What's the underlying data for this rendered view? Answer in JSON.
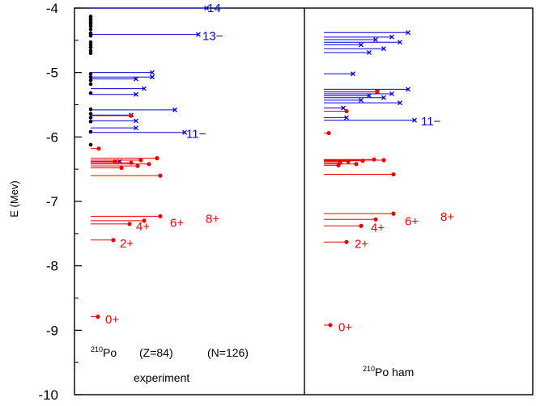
{
  "chart_data": {
    "type": "scatter",
    "ylabel": "E (Mev)",
    "ylim": [
      -10,
      -4
    ],
    "yticks": [
      -4,
      -5,
      -6,
      -7,
      -8,
      -9,
      -10
    ],
    "grid": false,
    "colors": {
      "red": "#ee0000",
      "blue": "#0000dd",
      "black": "#000000"
    },
    "panels": [
      {
        "name": "experiment",
        "caption_line1": {
          "mass": "210",
          "symbol": "Po",
          "z": "(Z=84)",
          "n": "(N=126)"
        },
        "caption_line2": "experiment",
        "black_dots": [
          -4.13,
          -4.16,
          -4.19,
          -4.22,
          -4.25,
          -4.28,
          -4.33,
          -4.39,
          -4.43,
          -4.53,
          -4.57,
          -4.61,
          -4.66,
          -4.7,
          -5.02,
          -5.07,
          -5.12,
          -5.18,
          -5.32,
          -5.57,
          -5.64,
          -5.7,
          -5.76,
          -5.92,
          -6.12
        ],
        "red_levels": [
          {
            "e": -6.18,
            "len": 10
          },
          {
            "e": -6.33,
            "len": 82
          },
          {
            "e": -6.36,
            "len": 62
          },
          {
            "e": -6.38,
            "len": 30
          },
          {
            "e": -6.4,
            "len": 50
          },
          {
            "e": -6.42,
            "len": 72
          },
          {
            "e": -6.45,
            "len": 58
          },
          {
            "e": -6.48,
            "len": 38
          },
          {
            "e": -6.6,
            "len": 86
          },
          {
            "e": -5.67,
            "len": 50
          },
          {
            "e": -7.23,
            "len": 86
          },
          {
            "e": -7.3,
            "len": 66
          },
          {
            "e": -7.35,
            "len": 48
          },
          {
            "e": -7.6,
            "len": 28
          },
          {
            "e": -8.79,
            "len": 9
          }
        ],
        "blue_levels": [
          {
            "e": -4.0,
            "len": 143
          },
          {
            "e": -4.41,
            "len": 133
          },
          {
            "e": -5.0,
            "len": 76
          },
          {
            "e": -5.07,
            "len": 76
          },
          {
            "e": -5.1,
            "len": 56
          },
          {
            "e": -5.25,
            "len": 66
          },
          {
            "e": -5.34,
            "len": 56
          },
          {
            "e": -5.58,
            "len": 104
          },
          {
            "e": -5.66,
            "len": 50
          },
          {
            "e": -5.75,
            "len": 56
          },
          {
            "e": -5.86,
            "len": 56
          },
          {
            "e": -5.93,
            "len": 116
          },
          {
            "e": -6.38,
            "len": 36
          }
        ],
        "labels": [
          {
            "text": "14−",
            "e": -4.0,
            "color": "blue",
            "dx": 144
          },
          {
            "text": "13−",
            "e": -4.43,
            "color": "blue",
            "dx": 138
          },
          {
            "text": "11−",
            "e": -5.95,
            "color": "blue",
            "dx": 118
          },
          {
            "text": "8+",
            "e": -7.27,
            "color": "red",
            "dx": 142
          },
          {
            "text": "6+",
            "e": -7.33,
            "color": "red",
            "dx": 98
          },
          {
            "text": "4+",
            "e": -7.39,
            "color": "red",
            "dx": 56
          },
          {
            "text": "2+",
            "e": -7.65,
            "color": "red",
            "dx": 36
          },
          {
            "text": "0+",
            "e": -8.83,
            "color": "red",
            "dx": 18
          }
        ]
      },
      {
        "name": "ham",
        "caption_line1": {
          "mass": "210",
          "symbol": "Po",
          "suffix": " ham"
        },
        "black_dots": [],
        "red_levels": [
          {
            "e": -5.94,
            "len": 6
          },
          {
            "e": -5.6,
            "len": 28
          },
          {
            "e": -5.3,
            "len": 66
          },
          {
            "e": -6.35,
            "len": 62
          },
          {
            "e": -6.36,
            "len": 74
          },
          {
            "e": -6.37,
            "len": 48
          },
          {
            "e": -6.38,
            "len": 30
          },
          {
            "e": -6.4,
            "len": 20
          },
          {
            "e": -6.42,
            "len": 40
          },
          {
            "e": -6.44,
            "len": 18
          },
          {
            "e": -6.58,
            "len": 86
          },
          {
            "e": -7.19,
            "len": 86
          },
          {
            "e": -7.28,
            "len": 64
          },
          {
            "e": -7.38,
            "len": 46
          },
          {
            "e": -7.63,
            "len": 28
          },
          {
            "e": -8.92,
            "len": 8
          }
        ],
        "blue_levels": [
          {
            "e": -4.38,
            "len": 104
          },
          {
            "e": -4.45,
            "len": 84
          },
          {
            "e": -4.49,
            "len": 64
          },
          {
            "e": -4.53,
            "len": 94
          },
          {
            "e": -4.57,
            "len": 46
          },
          {
            "e": -4.63,
            "len": 74
          },
          {
            "e": -4.69,
            "len": 56
          },
          {
            "e": -5.02,
            "len": 36
          },
          {
            "e": -5.26,
            "len": 104
          },
          {
            "e": -5.3,
            "len": 66
          },
          {
            "e": -5.33,
            "len": 84
          },
          {
            "e": -5.36,
            "len": 56
          },
          {
            "e": -5.39,
            "len": 74
          },
          {
            "e": -5.43,
            "len": 46
          },
          {
            "e": -5.47,
            "len": 94
          },
          {
            "e": -5.55,
            "len": 24
          },
          {
            "e": -5.7,
            "len": 28
          },
          {
            "e": -5.74,
            "len": 112
          }
        ],
        "labels": [
          {
            "text": "11−",
            "e": -5.76,
            "color": "blue",
            "dx": 120
          },
          {
            "text": "8+",
            "e": -7.24,
            "color": "red",
            "dx": 144
          },
          {
            "text": "6+",
            "e": -7.31,
            "color": "red",
            "dx": 100
          },
          {
            "text": "4+",
            "e": -7.41,
            "color": "red",
            "dx": 58
          },
          {
            "text": "2+",
            "e": -7.66,
            "color": "red",
            "dx": 38
          },
          {
            "text": "0+",
            "e": -8.95,
            "color": "red",
            "dx": 18
          }
        ]
      }
    ]
  }
}
